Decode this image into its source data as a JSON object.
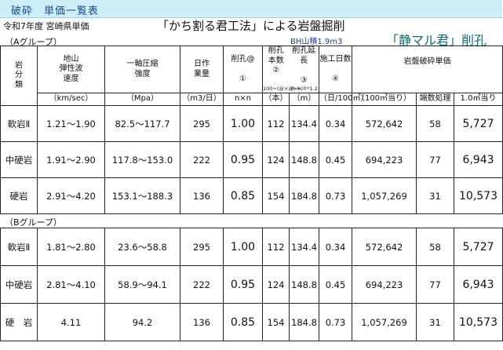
{
  "header": {
    "tab": "破砕　単価一覧表",
    "fiscal_note": "令和7年度 宮崎県単価",
    "title": "「かち割る君工法」による岩盤掘削",
    "brand": "「静マル君」削孔",
    "bh_note": "BH山積1.9m3"
  },
  "group_a": "（Aグループ）",
  "group_b": "（Bグループ）",
  "columns": {
    "rock": "岩\n分\n類",
    "velocity": "地山\n弾性波\n速度",
    "strength": "一軸圧縮\n強度",
    "daily": "日作\n業量",
    "hole": "削孔@\n\n①",
    "holes_count": "削孔\n本数\n②",
    "holes_formula": "100÷(@×@×h)",
    "length": "削孔延長\n\n③",
    "length_formula": "③ = ②*1.2",
    "days": "施工日数\n\n④",
    "unit_price": "岩盤破砕単価"
  },
  "units": [
    "（km/sec）",
    "（Mpa）",
    "（m3/日）",
    "n×n",
    "（本）",
    "（m）",
    "（日/100㎥）",
    "（100㎥当り）",
    "端数処理",
    "1.0㎥当り"
  ],
  "rows_a": [
    {
      "rock": "軟岩Ⅱ",
      "velocity": "1.21～1.90",
      "strength": "82.5～117.7",
      "daily": "295",
      "hole": "1.00",
      "count": "112",
      "length": "134.4",
      "days": "0.34",
      "price100": "572,642",
      "rounding": "58",
      "price1": "5,727"
    },
    {
      "rock": "中硬岩",
      "velocity": "1.91～2.90",
      "strength": "117.8～153.0",
      "daily": "222",
      "hole": "0.95",
      "count": "124",
      "length": "148.8",
      "days": "0.45",
      "price100": "694,223",
      "rounding": "77",
      "price1": "6,943"
    },
    {
      "rock": "硬岩",
      "velocity": "2.91～4.20",
      "strength": "153.1～188.3",
      "daily": "136",
      "hole": "0.85",
      "count": "154",
      "length": "184.8",
      "days": "0.73",
      "price100": "1,057,269",
      "rounding": "31",
      "price1": "10,573"
    }
  ],
  "rows_b": [
    {
      "rock": "軟岩Ⅱ",
      "velocity": "1.81～2.80",
      "strength": "23.6～58.8",
      "daily": "295",
      "hole": "1.00",
      "count": "112",
      "length": "134.4",
      "days": "0.34",
      "price100": "572,642",
      "rounding": "58",
      "price1": "5,727"
    },
    {
      "rock": "中硬岩",
      "velocity": "2.81～4.10",
      "strength": "58.9～94.1",
      "daily": "222",
      "hole": "0.95",
      "count": "124",
      "length": "148.8",
      "days": "0.45",
      "price100": "694,223",
      "rounding": "77",
      "price1": "6,943"
    },
    {
      "rock": "硬　岩",
      "velocity": "4.11",
      "strength": "94.2",
      "daily": "136",
      "hole": "0.85",
      "count": "154",
      "length": "184.8",
      "days": "0.73",
      "price100": "1,057,269",
      "rounding": "31",
      "price1": "10,573"
    }
  ]
}
